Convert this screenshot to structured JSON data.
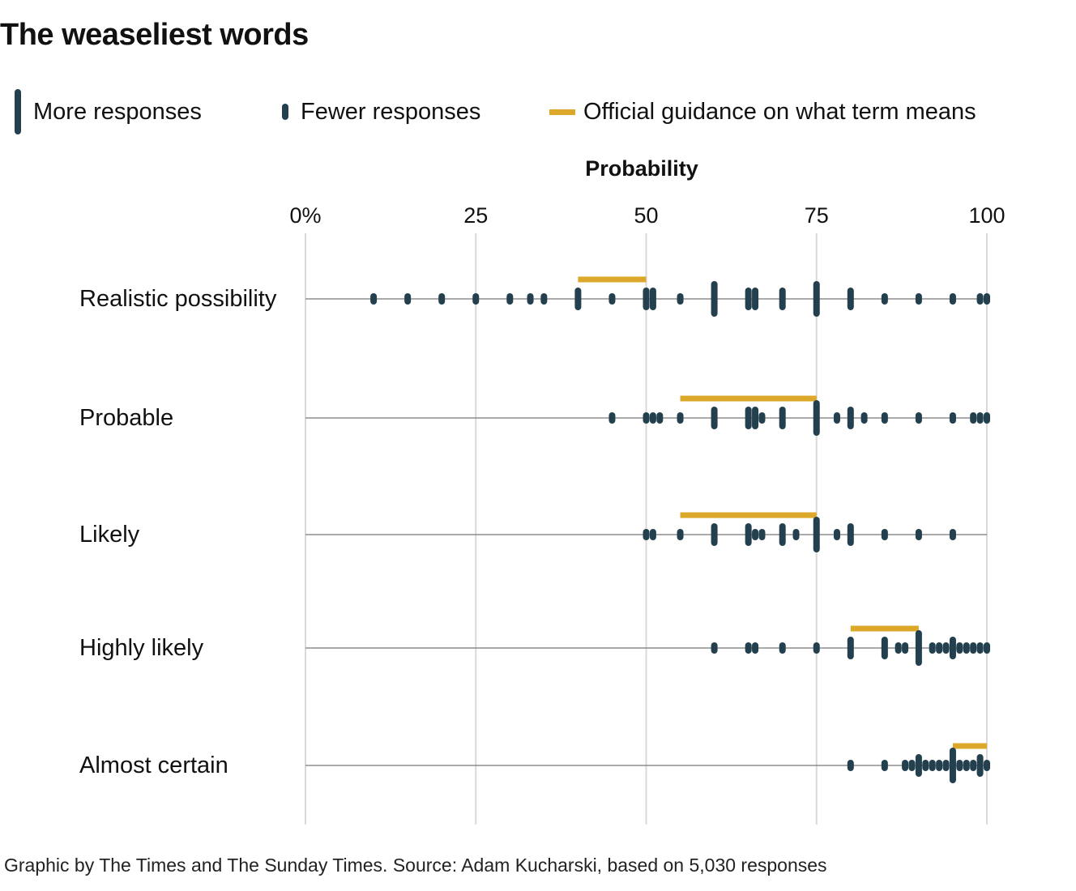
{
  "title": "The weaseliest words",
  "legend": {
    "more": "More responses",
    "fewer": "Fewer responses",
    "official": "Official guidance on what term means"
  },
  "colors": {
    "dots": "#24404f",
    "guidance": "#dca82a",
    "grid": "#d9d9d9",
    "baseline": "#777777"
  },
  "footer": "Graphic by The Times and The Sunday Times. Source: Adam Kucharski, based on 5,030 responses",
  "chart_data": {
    "type": "scatter",
    "title": "The weaseliest words",
    "xlabel": "Probability",
    "ylabel": "",
    "xlim": [
      0,
      100
    ],
    "grid": true,
    "legend_position": "top",
    "ticks": [
      {
        "value": 0,
        "label": "0%"
      },
      {
        "value": 25,
        "label": "25"
      },
      {
        "value": 50,
        "label": "50"
      },
      {
        "value": 75,
        "label": "75"
      },
      {
        "value": 100,
        "label": "100"
      }
    ],
    "categories": [
      "Realistic possibility",
      "Probable",
      "Likely",
      "Highly likely",
      "Almost certain"
    ],
    "series": [
      {
        "label": "Realistic possibility",
        "guidance": [
          40,
          50
        ],
        "responses": [
          [
            10,
            1
          ],
          [
            15,
            1
          ],
          [
            20,
            1
          ],
          [
            25,
            1
          ],
          [
            30,
            1
          ],
          [
            33,
            1
          ],
          [
            35,
            1
          ],
          [
            40,
            2
          ],
          [
            45,
            1
          ],
          [
            50,
            2
          ],
          [
            51,
            2
          ],
          [
            55,
            1
          ],
          [
            60,
            3
          ],
          [
            65,
            2
          ],
          [
            66,
            2
          ],
          [
            70,
            2
          ],
          [
            75,
            3
          ],
          [
            80,
            2
          ],
          [
            85,
            1
          ],
          [
            90,
            1
          ],
          [
            95,
            1
          ],
          [
            99,
            1
          ],
          [
            100,
            1
          ]
        ]
      },
      {
        "label": "Probable",
        "guidance": [
          55,
          75
        ],
        "responses": [
          [
            45,
            1
          ],
          [
            50,
            1
          ],
          [
            51,
            1
          ],
          [
            52,
            1
          ],
          [
            55,
            1
          ],
          [
            60,
            2
          ],
          [
            65,
            2
          ],
          [
            66,
            2
          ],
          [
            67,
            1
          ],
          [
            70,
            2
          ],
          [
            75,
            3
          ],
          [
            78,
            1
          ],
          [
            80,
            2
          ],
          [
            82,
            1
          ],
          [
            85,
            1
          ],
          [
            90,
            1
          ],
          [
            95,
            1
          ],
          [
            98,
            1
          ],
          [
            99,
            1
          ],
          [
            100,
            1
          ]
        ]
      },
      {
        "label": "Likely",
        "guidance": [
          55,
          75
        ],
        "responses": [
          [
            50,
            1
          ],
          [
            51,
            1
          ],
          [
            55,
            1
          ],
          [
            60,
            2
          ],
          [
            65,
            2
          ],
          [
            66,
            1
          ],
          [
            67,
            1
          ],
          [
            70,
            2
          ],
          [
            72,
            1
          ],
          [
            75,
            3
          ],
          [
            78,
            1
          ],
          [
            80,
            2
          ],
          [
            85,
            1
          ],
          [
            90,
            1
          ],
          [
            95,
            1
          ]
        ]
      },
      {
        "label": "Highly likely",
        "guidance": [
          80,
          90
        ],
        "responses": [
          [
            60,
            1
          ],
          [
            65,
            1
          ],
          [
            66,
            1
          ],
          [
            70,
            1
          ],
          [
            75,
            1
          ],
          [
            80,
            2
          ],
          [
            85,
            2
          ],
          [
            87,
            1
          ],
          [
            88,
            1
          ],
          [
            90,
            3
          ],
          [
            92,
            1
          ],
          [
            93,
            1
          ],
          [
            94,
            1
          ],
          [
            95,
            2
          ],
          [
            96,
            1
          ],
          [
            97,
            1
          ],
          [
            98,
            1
          ],
          [
            99,
            1
          ],
          [
            100,
            1
          ]
        ]
      },
      {
        "label": "Almost certain",
        "guidance": [
          95,
          100
        ],
        "responses": [
          [
            80,
            1
          ],
          [
            85,
            1
          ],
          [
            88,
            1
          ],
          [
            89,
            1
          ],
          [
            90,
            2
          ],
          [
            91,
            1
          ],
          [
            92,
            1
          ],
          [
            93,
            1
          ],
          [
            94,
            1
          ],
          [
            95,
            3
          ],
          [
            96,
            1
          ],
          [
            97,
            1
          ],
          [
            98,
            1
          ],
          [
            99,
            2
          ],
          [
            100,
            1
          ]
        ]
      }
    ]
  }
}
